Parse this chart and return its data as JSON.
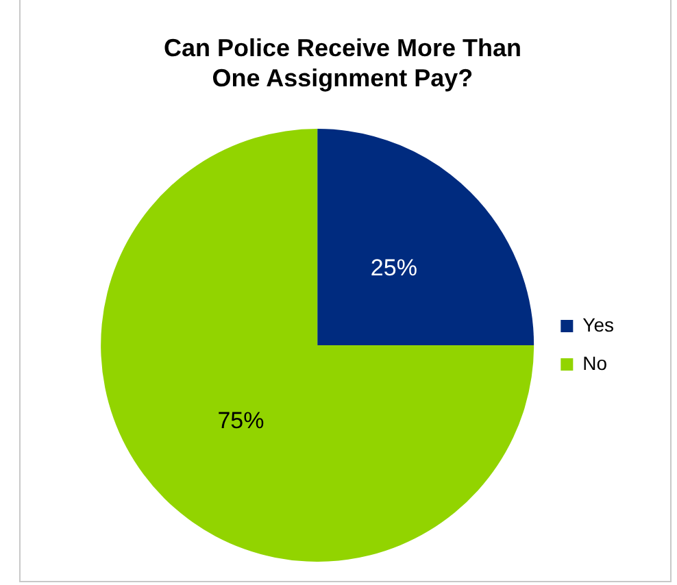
{
  "chart_data": {
    "type": "pie",
    "title": "Can Police Receive More Than One Assignment Pay?",
    "categories": [
      "Yes",
      "No"
    ],
    "values": [
      25,
      75
    ],
    "colors": [
      "#002b7f",
      "#92d400"
    ],
    "value_labels": [
      "25%",
      "75%"
    ],
    "legend": "right"
  }
}
